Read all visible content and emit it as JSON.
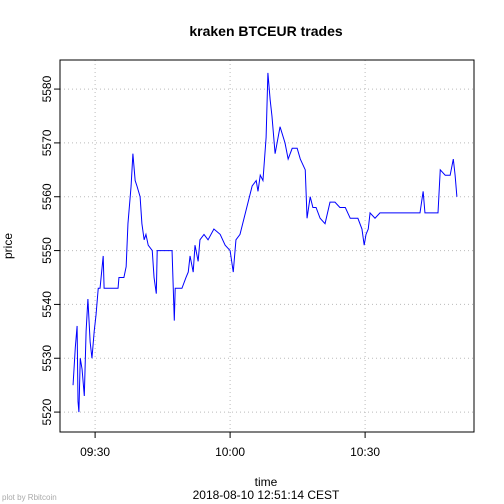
{
  "chart_data": {
    "type": "line",
    "title": "kraken BTCEUR trades",
    "xlabel": "time",
    "ylabel": "price",
    "subtitle": "2018-08-10 12:51:14 CEST",
    "caption": "plot by Rbitcoin",
    "xlim": [
      562.2,
      654.2
    ],
    "xticks": [
      {
        "value": 570,
        "label": "09:30"
      },
      {
        "value": 600,
        "label": "10:00"
      },
      {
        "value": 630,
        "label": "10:30"
      }
    ],
    "ylim": [
      5516.3,
      5585.4
    ],
    "yticks": [
      5520,
      5530,
      5540,
      5550,
      5560,
      5570,
      5580
    ],
    "grid": true,
    "x": [
      565.1,
      565.6,
      566.0,
      566.2,
      566.4,
      566.7,
      567.1,
      567.6,
      568.0,
      568.4,
      568.9,
      569.3,
      569.8,
      570.2,
      570.7,
      571.1,
      571.8,
      572.0,
      573.3,
      575.1,
      575.3,
      576.4,
      576.9,
      577.3,
      578.0,
      578.4,
      578.9,
      579.3,
      580.0,
      580.4,
      580.9,
      581.3,
      581.8,
      582.7,
      583.1,
      583.6,
      583.8,
      584.4,
      585.6,
      587.1,
      587.6,
      587.8,
      588.4,
      589.3,
      590.2,
      590.7,
      591.1,
      591.8,
      592.2,
      592.9,
      593.3,
      594.2,
      595.1,
      596.4,
      597.8,
      598.9,
      600.0,
      600.7,
      601.3,
      602.2,
      603.1,
      604.0,
      604.9,
      605.8,
      606.2,
      606.7,
      607.3,
      608.0,
      608.4,
      608.9,
      609.3,
      610.0,
      611.1,
      612.2,
      612.9,
      613.8,
      614.9,
      615.6,
      616.7,
      617.1,
      617.8,
      618.4,
      619.1,
      620.0,
      621.1,
      622.2,
      623.3,
      624.4,
      625.6,
      626.7,
      628.4,
      629.3,
      629.8,
      630.2,
      630.7,
      631.1,
      632.2,
      633.3,
      635.6,
      637.8,
      640.0,
      642.2,
      642.9,
      643.3,
      644.4,
      646.2,
      646.7,
      647.8,
      648.9,
      649.6,
      650.0,
      650.4
    ],
    "series": [
      {
        "name": "price",
        "color": "#0000ff",
        "values": [
          5525,
          5532,
          5536,
          5522,
          5520,
          5530,
          5528,
          5523,
          5535,
          5541,
          5533,
          5530,
          5535,
          5538,
          5543,
          5543,
          5549,
          5543,
          5543,
          5543,
          5545,
          5545,
          5547,
          5555,
          5562,
          5568,
          5563,
          5562,
          5560,
          5555,
          5552,
          5553,
          5551,
          5550,
          5545,
          5542,
          5550,
          5550,
          5550,
          5550,
          5537,
          5543,
          5543,
          5543,
          5545,
          5546,
          5549,
          5546,
          5551,
          5548,
          5552,
          5553,
          5552,
          5554,
          5553,
          5551,
          5550,
          5546,
          5552,
          5553,
          5556,
          5559,
          5562,
          5563,
          5561,
          5564,
          5563,
          5571,
          5583,
          5578,
          5575,
          5568,
          5573,
          5570,
          5567,
          5569,
          5569,
          5567,
          5565,
          5556,
          5560,
          5558,
          5558,
          5556,
          5555,
          5559,
          5559,
          5558,
          5558,
          5556,
          5556,
          5554,
          5551,
          5553,
          5554,
          5557,
          5556,
          5557,
          5557,
          5557,
          5557,
          5557,
          5561,
          5557,
          5557,
          5557,
          5565,
          5564,
          5564,
          5567,
          5564,
          5560
        ]
      }
    ]
  }
}
